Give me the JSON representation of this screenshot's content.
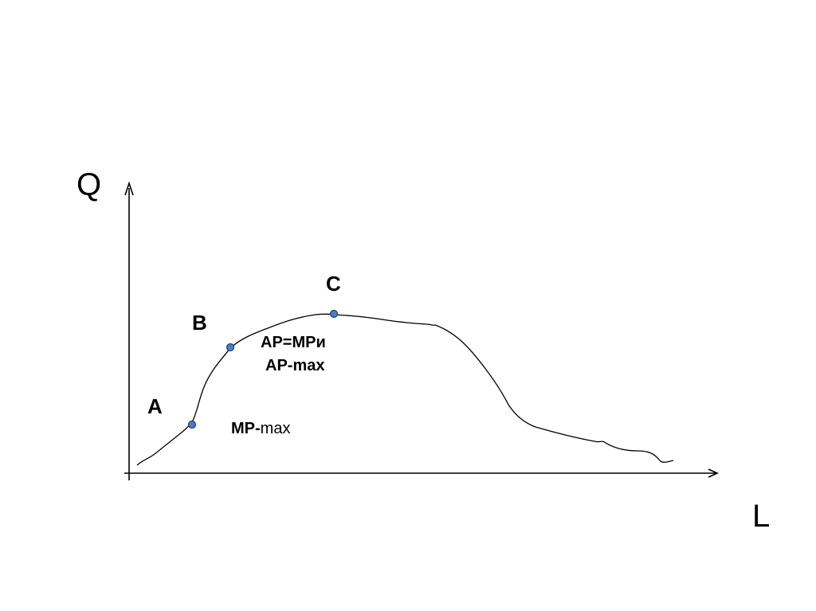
{
  "axes": {
    "y_label": "Q",
    "x_label": "L"
  },
  "points": {
    "a": "A",
    "b": "B",
    "c": "C"
  },
  "annotations": {
    "mp_prefix": "MP-",
    "mp_suffix": "max",
    "ap_line1": "AP=MPи",
    "ap_line2": "AP-max"
  },
  "colors": {
    "axis": "#000000",
    "curve": "#000000",
    "point_fill": "#4a7fc1",
    "point_stroke": "#1f3f6e"
  }
}
